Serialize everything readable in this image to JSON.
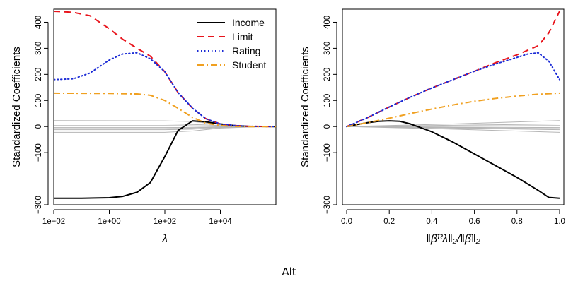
{
  "caption": "Alt",
  "chart_data": [
    {
      "type": "line",
      "xscale": "log",
      "xlabel": "λ",
      "ylabel": "Standardized Coefficients",
      "xlim": [
        0.01,
        1000000
      ],
      "ylim": [
        -300,
        450
      ],
      "xticks": [
        0.01,
        1,
        100,
        10000
      ],
      "xtick_labels": [
        "1e−02",
        "1e+00",
        "1e+02",
        "1e+04"
      ],
      "yticks": [
        -300,
        -100,
        0,
        100,
        200,
        300,
        400
      ],
      "ytick_labels": [
        "−300",
        "−100",
        "0",
        "100",
        "200",
        "300",
        "400"
      ],
      "legend": {
        "position": "top-right",
        "entries": [
          "Income",
          "Limit",
          "Rating",
          "Student"
        ]
      },
      "series": [
        {
          "name": "Income",
          "color": "#000000",
          "dash": "solid",
          "x": [
            0.01,
            0.1,
            1,
            3,
            10,
            30,
            100,
            300,
            1000,
            3000,
            10000,
            30000,
            100000,
            1000000
          ],
          "values": [
            -275,
            -275,
            -273,
            -268,
            -252,
            -215,
            -115,
            -15,
            22,
            18,
            10,
            4,
            1,
            0
          ]
        },
        {
          "name": "Limit",
          "color": "#e8141c",
          "dash": "dashed",
          "x": [
            0.01,
            0.05,
            0.2,
            1,
            3,
            10,
            30,
            100,
            300,
            1000,
            3000,
            10000,
            30000,
            100000,
            1000000
          ],
          "values": [
            442,
            438,
            425,
            375,
            335,
            300,
            270,
            210,
            130,
            70,
            30,
            10,
            4,
            1,
            0
          ]
        },
        {
          "name": "Rating",
          "color": "#1b2bd6",
          "dash": "dotted",
          "x": [
            0.01,
            0.05,
            0.2,
            1,
            3,
            10,
            30,
            100,
            300,
            1000,
            3000,
            10000,
            30000,
            100000,
            1000000
          ],
          "values": [
            180,
            183,
            205,
            255,
            278,
            283,
            260,
            210,
            130,
            70,
            30,
            10,
            4,
            1,
            0
          ]
        },
        {
          "name": "Student",
          "color": "#f0a020",
          "dash": "dashdot",
          "x": [
            0.01,
            1,
            10,
            30,
            100,
            300,
            1000,
            3000,
            10000,
            30000,
            100000,
            1000000
          ],
          "values": [
            128,
            127,
            125,
            120,
            100,
            70,
            35,
            13,
            4,
            1,
            0,
            0
          ]
        },
        {
          "name": "other-1",
          "color": "#b5b5b5",
          "dash": "solid",
          "x": [
            0.01,
            100,
            1000,
            10000,
            100000,
            1000000
          ],
          "values": [
            23,
            22,
            19,
            8,
            2,
            0
          ]
        },
        {
          "name": "other-2",
          "color": "#b5b5b5",
          "dash": "solid",
          "x": [
            0.01,
            100,
            1000,
            10000,
            100000,
            1000000
          ],
          "values": [
            10,
            10,
            8,
            4,
            1,
            0
          ]
        },
        {
          "name": "other-3",
          "color": "#b5b5b5",
          "dash": "solid",
          "x": [
            0.01,
            100,
            1000,
            10000,
            100000,
            1000000
          ],
          "values": [
            4,
            4,
            3,
            1,
            0,
            0
          ]
        },
        {
          "name": "other-4",
          "color": "#b5b5b5",
          "dash": "solid",
          "x": [
            0.01,
            100,
            1000,
            10000,
            100000,
            1000000
          ],
          "values": [
            -4,
            -4,
            -3,
            -1,
            0,
            0
          ]
        },
        {
          "name": "other-5",
          "color": "#b5b5b5",
          "dash": "solid",
          "x": [
            0.01,
            100,
            1000,
            10000,
            100000,
            1000000
          ],
          "values": [
            -8,
            -8,
            -6,
            -2,
            -1,
            0
          ]
        },
        {
          "name": "other-6",
          "color": "#b5b5b5",
          "dash": "solid",
          "x": [
            0.01,
            100,
            1000,
            10000,
            100000,
            1000000
          ],
          "values": [
            -12,
            -12,
            -10,
            -4,
            -1,
            0
          ]
        },
        {
          "name": "other-7",
          "color": "#b5b5b5",
          "dash": "solid",
          "x": [
            0.01,
            100,
            1000,
            10000,
            100000,
            1000000
          ],
          "values": [
            -22,
            -22,
            -17,
            -6,
            -2,
            0
          ]
        }
      ]
    },
    {
      "type": "line",
      "xscale": "linear",
      "xlabel": "‖β̂ᴿλ‖₂/‖β̂‖₂",
      "ylabel": "Standardized Coefficients",
      "xlim": [
        -0.02,
        1.02
      ],
      "ylim": [
        -300,
        450
      ],
      "xticks": [
        0,
        0.2,
        0.4,
        0.6,
        0.8,
        1
      ],
      "xtick_labels": [
        "0.0",
        "0.2",
        "0.4",
        "0.6",
        "0.8",
        "1.0"
      ],
      "yticks": [
        -300,
        -100,
        0,
        100,
        200,
        300,
        400
      ],
      "ytick_labels": [
        "−300",
        "−100",
        "0",
        "100",
        "200",
        "300",
        "400"
      ],
      "series": [
        {
          "name": "Income",
          "color": "#000000",
          "dash": "solid",
          "x": [
            0,
            0.05,
            0.1,
            0.15,
            0.2,
            0.25,
            0.3,
            0.4,
            0.5,
            0.6,
            0.7,
            0.8,
            0.9,
            0.95,
            1.0
          ],
          "values": [
            0,
            8,
            15,
            20,
            22,
            20,
            10,
            -20,
            -60,
            -105,
            -150,
            -195,
            -245,
            -272,
            -275
          ]
        },
        {
          "name": "Limit",
          "color": "#e8141c",
          "dash": "dashed",
          "x": [
            0,
            0.1,
            0.2,
            0.3,
            0.4,
            0.5,
            0.6,
            0.7,
            0.8,
            0.9,
            0.95,
            1.0
          ],
          "values": [
            0,
            35,
            75,
            113,
            148,
            180,
            212,
            245,
            275,
            310,
            360,
            442
          ]
        },
        {
          "name": "Rating",
          "color": "#1b2bd6",
          "dash": "dotted",
          "x": [
            0,
            0.1,
            0.2,
            0.3,
            0.4,
            0.5,
            0.6,
            0.7,
            0.8,
            0.85,
            0.9,
            0.95,
            1.0
          ],
          "values": [
            0,
            35,
            75,
            113,
            148,
            180,
            212,
            240,
            265,
            278,
            283,
            250,
            180
          ]
        },
        {
          "name": "Student",
          "color": "#f0a020",
          "dash": "dashdot",
          "x": [
            0,
            0.1,
            0.2,
            0.3,
            0.4,
            0.5,
            0.6,
            0.7,
            0.8,
            0.9,
            1.0
          ],
          "values": [
            0,
            15,
            32,
            50,
            67,
            83,
            97,
            108,
            117,
            124,
            128
          ]
        },
        {
          "name": "other-1",
          "color": "#b5b5b5",
          "dash": "solid",
          "x": [
            0,
            0.5,
            1.0
          ],
          "values": [
            0,
            10,
            23
          ]
        },
        {
          "name": "other-2",
          "color": "#b5b5b5",
          "dash": "solid",
          "x": [
            0,
            0.5,
            1.0
          ],
          "values": [
            0,
            5,
            10
          ]
        },
        {
          "name": "other-3",
          "color": "#b5b5b5",
          "dash": "solid",
          "x": [
            0,
            0.5,
            1.0
          ],
          "values": [
            0,
            2,
            4
          ]
        },
        {
          "name": "other-4",
          "color": "#b5b5b5",
          "dash": "solid",
          "x": [
            0,
            0.5,
            1.0
          ],
          "values": [
            0,
            -2,
            -4
          ]
        },
        {
          "name": "other-5",
          "color": "#b5b5b5",
          "dash": "solid",
          "x": [
            0,
            0.5,
            1.0
          ],
          "values": [
            0,
            -4,
            -8
          ]
        },
        {
          "name": "other-6",
          "color": "#b5b5b5",
          "dash": "solid",
          "x": [
            0,
            0.5,
            1.0
          ],
          "values": [
            0,
            -6,
            -12
          ]
        },
        {
          "name": "other-7",
          "color": "#b5b5b5",
          "dash": "solid",
          "x": [
            0,
            0.5,
            1.0
          ],
          "values": [
            0,
            -10,
            -22
          ]
        }
      ]
    }
  ]
}
